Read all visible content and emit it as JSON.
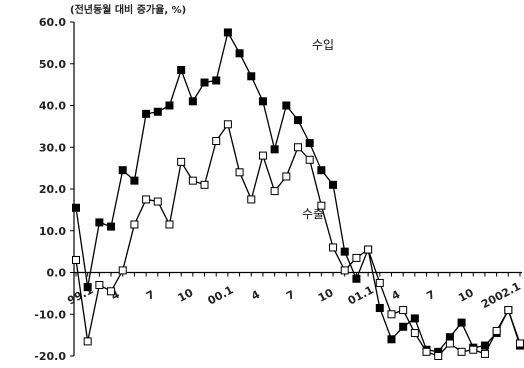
{
  "chart_data": {
    "type": "line",
    "unit_label": "(전년동월 대비 증가율, %)",
    "ylim": [
      -20,
      60
    ],
    "yticks": [
      "60.0",
      "50.0",
      "40.0",
      "30.0",
      "20.0",
      "10.0",
      "0.0",
      "-10.0",
      "-20.0"
    ],
    "ytick_values": [
      60,
      50,
      40,
      30,
      20,
      10,
      0,
      -10,
      -20
    ],
    "xtick_labels": [
      "99.1",
      "4",
      "7",
      "10",
      "00.1",
      "4",
      "7",
      "10",
      "01.1",
      "4",
      "7",
      "10",
      "2002.1"
    ],
    "xtick_indices": [
      0,
      3,
      6,
      9,
      12,
      15,
      18,
      21,
      24,
      27,
      30,
      33,
      36
    ],
    "grid": false,
    "series": [
      {
        "name": "수입",
        "marker": "filled-square",
        "values": [
          15.5,
          -3.5,
          12.0,
          11.0,
          24.5,
          22.0,
          38.0,
          38.5,
          40.0,
          48.5,
          41.0,
          45.5,
          46.0,
          57.5,
          52.5,
          47.0,
          41.0,
          29.5,
          40.0,
          36.5,
          31.0,
          24.5,
          21.0,
          5.0,
          -1.5,
          5.5,
          -8.5,
          -16.0,
          -13.0,
          -11.0,
          -18.5,
          -19.0,
          -15.5,
          -12.0,
          -18.0,
          -17.5,
          -14.5,
          -9.0,
          -17.5
        ]
      },
      {
        "name": "수출",
        "marker": "open-square",
        "values": [
          3.0,
          -16.5,
          -3.0,
          -4.5,
          0.5,
          11.5,
          17.5,
          17.0,
          11.5,
          26.5,
          22.0,
          21.0,
          31.5,
          35.5,
          24.0,
          17.5,
          28.0,
          19.5,
          23.0,
          30.0,
          27.0,
          16.0,
          6.0,
          0.5,
          3.5,
          5.5,
          -2.5,
          -10.0,
          -9.0,
          -14.5,
          -19.0,
          -20.0,
          -17.0,
          -19.0,
          -18.5,
          -19.5,
          -14.0,
          -9.0,
          -17.0
        ]
      }
    ],
    "annotations": [
      {
        "text": "수입",
        "series": 0
      },
      {
        "text": "수출",
        "series": 1
      }
    ]
  }
}
